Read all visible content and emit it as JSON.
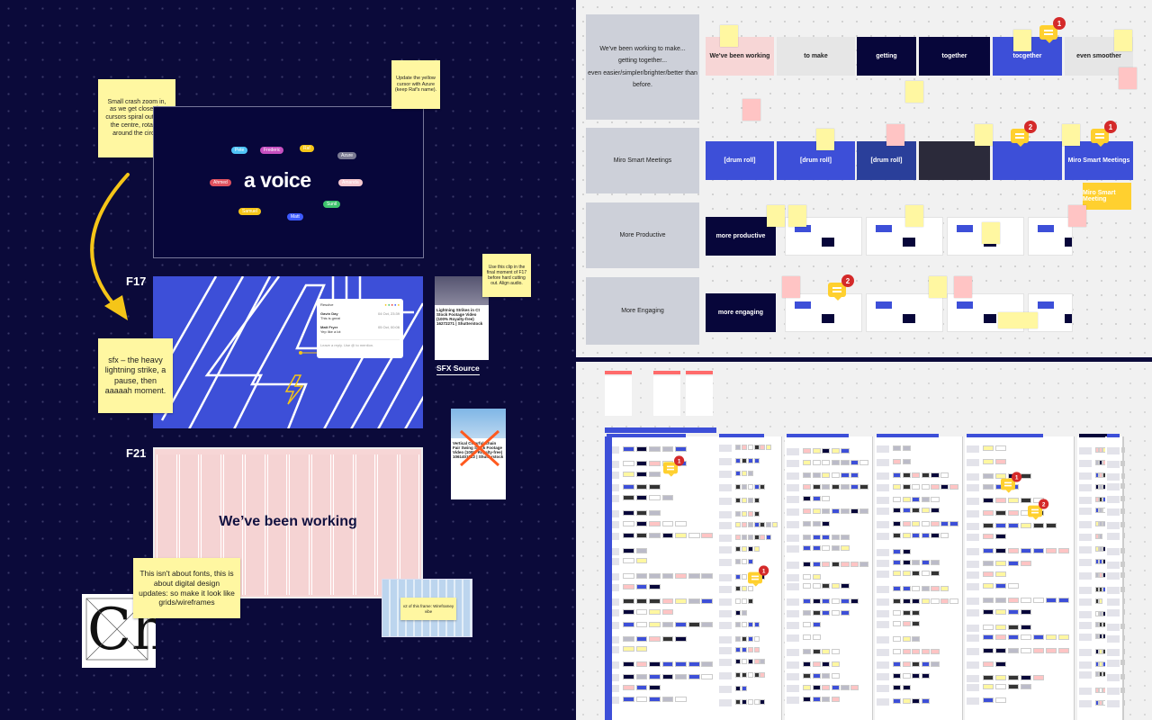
{
  "left": {
    "notes": {
      "crash_zoom": "Small crash zoom in, as we get close the cursors spiral out from the centre, rotating around the circle.",
      "yellow_cursor": "Update the yellow cursor with Azure (keep Raf's name).",
      "sfx": "sfx – the heavy lightning strike, a pause, then aaaaah moment.",
      "use_clip": "Use this clip in the final moment of F17 before hard cutting out. Align audio.",
      "fonts": "This isn't about fonts, this is about digital design updates: so make it look like grids/wireframes",
      "v2": "v2 of this frame: Wireframey vibe"
    },
    "voice_frame": {
      "title": "a voice",
      "cursors": [
        {
          "name": "Pete",
          "color": "#4fc3f7"
        },
        {
          "name": "Frederic",
          "color": "#c64fc0"
        },
        {
          "name": "Raf",
          "color": "#f5c518"
        },
        {
          "name": "Azure",
          "color": "#7a7a92"
        },
        {
          "name": "Ahmed",
          "color": "#e0525f"
        },
        {
          "name": "Amanda",
          "color": "#f6c9cf"
        },
        {
          "name": "Samuel",
          "color": "#f5c518"
        },
        {
          "name": "Matt",
          "color": "#3d5afe"
        },
        {
          "name": "Sunil",
          "color": "#3ec46d"
        }
      ]
    },
    "f17": {
      "label": "F17",
      "comment": {
        "resolve": "Resolve",
        "thread": [
          {
            "author": "Gavin Day",
            "date": "04 Oct, 23:39",
            "text": "This is great"
          },
          {
            "author": "Matt Fryer",
            "date": "05 Oct, 00:06",
            "text": "Yep like a lot"
          }
        ],
        "reply_placeholder": "Leave a reply. Use @ to mention."
      }
    },
    "sfx_card": {
      "title": "Lightning Strikes in Ct Stock Footage Video (100% Royalty-free) 16272271 | Shutterstock",
      "caption": "SFX Source"
    },
    "rejected_card": {
      "title": "Vertical Colorful Chain Fair Swing Stock Footage Video (100% Royalty-free) 1061401522 | Shutterstock"
    },
    "f21": {
      "label": "F21",
      "title": "We’ve been working"
    },
    "glyph": "Ch"
  },
  "storyboard": {
    "rows": [
      {
        "label": "We've been working to make...\ngetting together...\neven easier/simpler/brighter/better than before.",
        "frames": [
          "We've been working",
          "to make",
          "getting",
          "together",
          "tocgether",
          "even smoother"
        ]
      },
      {
        "label": "Miro Smart Meetings",
        "frames": [
          "[drum roll]",
          "[drum roll]",
          "[drum roll]",
          "",
          "",
          "Miro Smart Meetings"
        ],
        "extra": "Miro Smart Meeting"
      },
      {
        "label": "More Productive",
        "frames": [
          "more productive"
        ]
      },
      {
        "label": "More Engaging",
        "frames": [
          "more engaging"
        ]
      }
    ],
    "comment_counts": [
      1,
      2,
      1,
      2
    ],
    "overview_comment_counts": [
      1,
      1,
      2,
      1
    ]
  },
  "colors": {
    "navy": "#0b0a3a",
    "miro_blue": "#3d4fd8",
    "sticky_yellow": "#fff7a1",
    "sticky_pink": "#ffc4c4",
    "badge_red": "#d42a2a"
  }
}
